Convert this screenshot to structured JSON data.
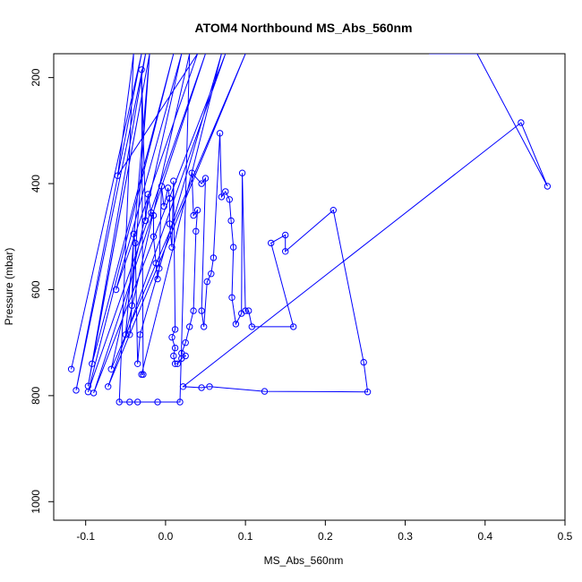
{
  "chart_data": {
    "type": "scatter",
    "title": "ATOM4 Northbound MS_Abs_560nm",
    "xlabel": "MS_Abs_560nm",
    "ylabel": "Pressure (mbar)",
    "xlim": [
      -0.14,
      0.5
    ],
    "ylim": [
      1035,
      155
    ],
    "y_reversed": true,
    "x_ticks": [
      -0.1,
      0.0,
      0.1,
      0.2,
      0.3,
      0.4,
      0.5
    ],
    "x_tick_labels": [
      "-0.1",
      "0.0",
      "0.1",
      "0.2",
      "0.3",
      "0.4",
      "0.5"
    ],
    "y_ticks": [
      200,
      400,
      600,
      800,
      1000
    ],
    "y_tick_labels": [
      "200",
      "400",
      "600",
      "800",
      "1000"
    ],
    "grid": false,
    "legend": "none",
    "line_color": "#0000ff",
    "marker": "open-circle",
    "series": [
      {
        "values": [
          [
            -0.118,
            750
          ],
          [
            -0.03,
            155
          ],
          [
            -0.112,
            790
          ],
          [
            -0.025,
            155
          ],
          [
            -0.097,
            782
          ],
          [
            -0.02,
            155
          ],
          [
            -0.092,
            740
          ],
          [
            0.01,
            155
          ],
          [
            -0.097,
            793
          ],
          [
            0.05,
            155
          ],
          [
            -0.09,
            795
          ],
          [
            0.075,
            155
          ],
          [
            -0.072,
            783
          ],
          [
            0.1,
            155
          ],
          [
            -0.068,
            750
          ],
          [
            0.02,
            155
          ],
          [
            -0.062,
            600
          ],
          [
            0.04,
            155
          ],
          [
            -0.06,
            385
          ],
          [
            -0.04,
            155
          ],
          [
            -0.058,
            812
          ],
          [
            -0.045,
            812
          ],
          [
            -0.035,
            812
          ],
          [
            -0.01,
            812
          ],
          [
            0.018,
            812
          ],
          [
            0.03,
            155
          ],
          [
            -0.05,
            685
          ],
          [
            -0.02,
            155
          ],
          [
            -0.045,
            685
          ],
          [
            -0.042,
            630
          ],
          [
            -0.04,
            495
          ],
          [
            -0.038,
            512
          ],
          [
            -0.035,
            740
          ],
          [
            -0.032,
            685
          ],
          [
            0.07,
            155
          ],
          [
            -0.03,
            760
          ],
          [
            -0.028,
            760
          ],
          [
            -0.03,
            185
          ],
          [
            -0.025,
            470
          ],
          [
            -0.022,
            420
          ],
          [
            -0.018,
            455
          ],
          [
            -0.015,
            460
          ],
          [
            -0.015,
            500
          ],
          [
            -0.012,
            550
          ],
          [
            -0.01,
            580
          ],
          [
            -0.008,
            560
          ],
          [
            -0.005,
            405
          ],
          [
            -0.002,
            443
          ],
          [
            0.003,
            408
          ],
          [
            0.005,
            428
          ],
          [
            0.005,
            476
          ],
          [
            0.008,
            520
          ],
          [
            0.01,
            395
          ],
          [
            0.012,
            675
          ],
          [
            0.008,
            690
          ],
          [
            0.012,
            710
          ],
          [
            0.01,
            725
          ],
          [
            0.012,
            740
          ],
          [
            0.015,
            740
          ],
          [
            0.02,
            730
          ],
          [
            0.025,
            725
          ],
          [
            0.02,
            720
          ],
          [
            0.025,
            700
          ],
          [
            0.03,
            670
          ],
          [
            0.035,
            640
          ],
          [
            0.038,
            490
          ],
          [
            0.04,
            450
          ],
          [
            0.035,
            460
          ],
          [
            0.033,
            380
          ],
          [
            0.045,
            400
          ],
          [
            0.05,
            390
          ],
          [
            0.045,
            640
          ],
          [
            0.048,
            670
          ],
          [
            0.052,
            585
          ],
          [
            0.057,
            570
          ],
          [
            0.06,
            540
          ],
          [
            0.068,
            305
          ],
          [
            0.07,
            425
          ],
          [
            0.075,
            415
          ],
          [
            0.08,
            430
          ],
          [
            0.082,
            470
          ],
          [
            0.085,
            520
          ],
          [
            0.083,
            615
          ],
          [
            0.088,
            665
          ],
          [
            0.095,
            645
          ],
          [
            0.096,
            380
          ],
          [
            0.1,
            640
          ],
          [
            0.104,
            640
          ],
          [
            0.108,
            670
          ],
          [
            0.16,
            670
          ],
          [
            0.132,
            512
          ],
          [
            0.15,
            497
          ],
          [
            0.15,
            528
          ],
          [
            0.21,
            450
          ],
          [
            0.248,
            737
          ],
          [
            0.253,
            793
          ],
          [
            0.124,
            792
          ],
          [
            0.055,
            783
          ],
          [
            0.045,
            785
          ],
          [
            0.022,
            783
          ],
          [
            0.445,
            285
          ],
          [
            0.478,
            405
          ],
          [
            0.39,
            155
          ],
          [
            0.33,
            155
          ]
        ]
      }
    ]
  }
}
